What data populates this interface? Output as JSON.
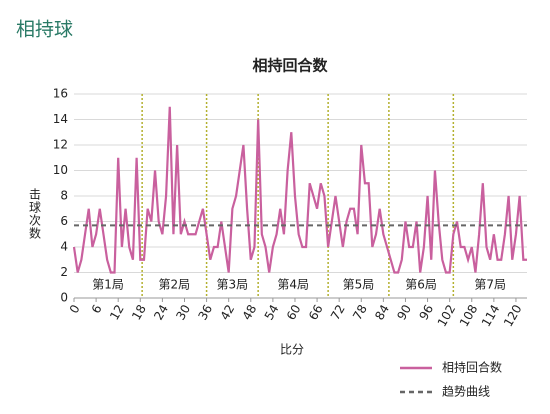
{
  "header": {
    "title": "相持球"
  },
  "chart_data": {
    "type": "line",
    "title": "相持回合数",
    "x_label": "比分",
    "y_label": "击球次数",
    "x": [
      0,
      1,
      2,
      3,
      4,
      5,
      6,
      7,
      8,
      9,
      10,
      11,
      12,
      13,
      14,
      15,
      16,
      17,
      18,
      19,
      20,
      21,
      22,
      23,
      24,
      25,
      26,
      27,
      28,
      29,
      30,
      31,
      32,
      33,
      34,
      35,
      36,
      37,
      38,
      39,
      40,
      41,
      42,
      43,
      44,
      45,
      46,
      47,
      48,
      49,
      50,
      51,
      52,
      53,
      54,
      55,
      56,
      57,
      58,
      59,
      60,
      61,
      62,
      63,
      64,
      65,
      66,
      67,
      68,
      69,
      70,
      71,
      72,
      73,
      74,
      75,
      76,
      77,
      78,
      79,
      80,
      81,
      82,
      83,
      84,
      85,
      86,
      87,
      88,
      89,
      90,
      91,
      92,
      93,
      94,
      95,
      96,
      97,
      98,
      99,
      100,
      101,
      102,
      103,
      104,
      105,
      106,
      107,
      108,
      109,
      110,
      111,
      112,
      113,
      114,
      115,
      116,
      117,
      118,
      119,
      120,
      121,
      122,
      123
    ],
    "series": [
      {
        "name": "相持回合数",
        "color": "#c9609e",
        "values": [
          4,
          2,
          3,
          5,
          7,
          4,
          5,
          7,
          5,
          3,
          2,
          2,
          11,
          4,
          7,
          4,
          3,
          11,
          3,
          3,
          7,
          6,
          10,
          6,
          5,
          8,
          15,
          5,
          12,
          5,
          6,
          5,
          5,
          5,
          6,
          7,
          5,
          3,
          4,
          4,
          6,
          4,
          2,
          7,
          8,
          10,
          12,
          7,
          3,
          4,
          14,
          5,
          4,
          2,
          4,
          5,
          7,
          5,
          10,
          13,
          8,
          5,
          4,
          4,
          9,
          8,
          7,
          9,
          8,
          4,
          6,
          8,
          6,
          4,
          6,
          7,
          7,
          5,
          12,
          9,
          9,
          4,
          5,
          7,
          5,
          4,
          3,
          2,
          2,
          3,
          6,
          4,
          4,
          6,
          2,
          4,
          8,
          3,
          10,
          6,
          3,
          2,
          2,
          5,
          6,
          4,
          4,
          3,
          4,
          2,
          5,
          9,
          4,
          3,
          5,
          3,
          3,
          5,
          8,
          3,
          5,
          8,
          3,
          3
        ]
      },
      {
        "name": "趋势曲线",
        "color": "#666666",
        "dashed": true,
        "x": [
          0,
          123
        ],
        "values": [
          5.7,
          5.7
        ]
      }
    ],
    "dividers": [
      18.5,
      36,
      50,
      69,
      85.5,
      103
    ],
    "set_labels": [
      "第1局",
      "第2局",
      "第3局",
      "第4局",
      "第5局",
      "第6局",
      "第7局"
    ],
    "xlim": [
      0,
      123
    ],
    "xticks": [
      0,
      6,
      12,
      18,
      24,
      30,
      36,
      42,
      48,
      54,
      60,
      66,
      72,
      78,
      84,
      90,
      96,
      102,
      108,
      114,
      120
    ],
    "ylim": [
      0,
      16
    ],
    "yticks": [
      0,
      2,
      4,
      6,
      8,
      10,
      12,
      14,
      16
    ],
    "grid": true
  }
}
